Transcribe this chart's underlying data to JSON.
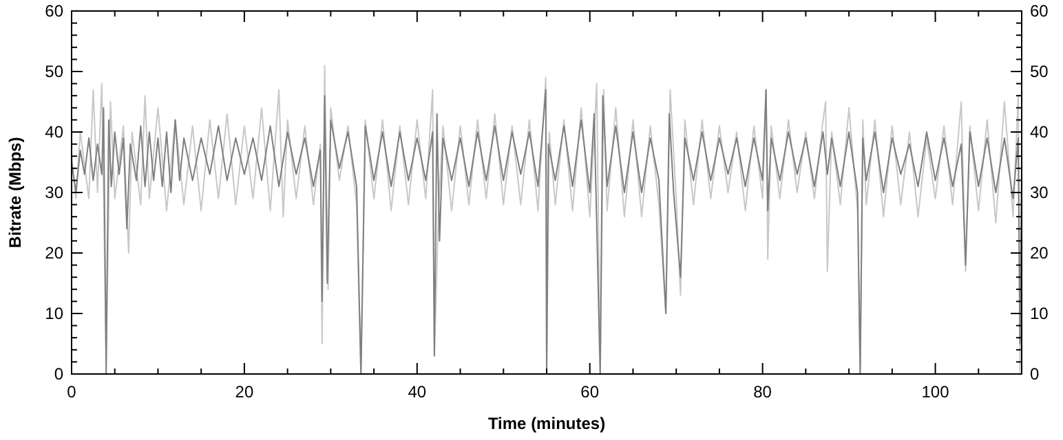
{
  "chart_data": {
    "type": "line",
    "xlabel": "Time (minutes)",
    "ylabel": "Bitrate (Mbps)",
    "xlim": [
      0,
      110
    ],
    "ylim": [
      0,
      60
    ],
    "y2lim": [
      0,
      60
    ],
    "xticks": [
      0,
      {
        "value": 5,
        "label": null
      },
      {
        "value": 10,
        "label": null
      },
      {
        "value": 15,
        "label": null
      },
      20,
      {
        "value": 25,
        "label": null
      },
      {
        "value": 30,
        "label": null
      },
      {
        "value": 35,
        "label": null
      },
      40,
      {
        "value": 45,
        "label": null
      },
      {
        "value": 50,
        "label": null
      },
      {
        "value": 55,
        "label": null
      },
      60,
      {
        "value": 65,
        "label": null
      },
      {
        "value": 70,
        "label": null
      },
      {
        "value": 75,
        "label": null
      },
      80,
      {
        "value": 85,
        "label": null
      },
      {
        "value": 90,
        "label": null
      },
      {
        "value": 95,
        "label": null
      },
      100,
      {
        "value": 105,
        "label": null
      }
    ],
    "yticks": [
      0,
      {
        "value": 2,
        "label": null
      },
      {
        "value": 4,
        "label": null
      },
      {
        "value": 6,
        "label": null
      },
      {
        "value": 8,
        "label": null
      },
      10,
      {
        "value": 12,
        "label": null
      },
      {
        "value": 14,
        "label": null
      },
      {
        "value": 16,
        "label": null
      },
      {
        "value": 18,
        "label": null
      },
      20,
      {
        "value": 22,
        "label": null
      },
      {
        "value": 24,
        "label": null
      },
      {
        "value": 26,
        "label": null
      },
      {
        "value": 28,
        "label": null
      },
      30,
      {
        "value": 32,
        "label": null
      },
      {
        "value": 34,
        "label": null
      },
      {
        "value": 36,
        "label": null
      },
      {
        "value": 38,
        "label": null
      },
      40,
      {
        "value": 42,
        "label": null
      },
      {
        "value": 44,
        "label": null
      },
      {
        "value": 46,
        "label": null
      },
      {
        "value": 48,
        "label": null
      },
      50,
      {
        "value": 52,
        "label": null
      },
      {
        "value": 54,
        "label": null
      },
      {
        "value": 56,
        "label": null
      },
      {
        "value": 58,
        "label": null
      },
      60
    ],
    "y2ticks": [
      0,
      {
        "value": 2,
        "label": null
      },
      {
        "value": 4,
        "label": null
      },
      {
        "value": 6,
        "label": null
      },
      {
        "value": 8,
        "label": null
      },
      10,
      {
        "value": 12,
        "label": null
      },
      {
        "value": 14,
        "label": null
      },
      {
        "value": 16,
        "label": null
      },
      {
        "value": 18,
        "label": null
      },
      20,
      {
        "value": 22,
        "label": null
      },
      {
        "value": 24,
        "label": null
      },
      {
        "value": 26,
        "label": null
      },
      {
        "value": 28,
        "label": null
      },
      30,
      {
        "value": 32,
        "label": null
      },
      {
        "value": 34,
        "label": null
      },
      {
        "value": 36,
        "label": null
      },
      {
        "value": 38,
        "label": null
      },
      40,
      {
        "value": 42,
        "label": null
      },
      {
        "value": 44,
        "label": null
      },
      {
        "value": 46,
        "label": null
      },
      {
        "value": 48,
        "label": null
      },
      50,
      {
        "value": 52,
        "label": null
      },
      {
        "value": 54,
        "label": null
      },
      {
        "value": 56,
        "label": null
      },
      {
        "value": 58,
        "label": null
      },
      60
    ],
    "series": [
      {
        "color": "#c8c8c8",
        "x": [
          0,
          0.5,
          1,
          2,
          2.5,
          3,
          3.5,
          4.0,
          4.5,
          5,
          6,
          6.6,
          7,
          8,
          8.5,
          9,
          10,
          11,
          12,
          13,
          14,
          15,
          16,
          17,
          18,
          19,
          20,
          21,
          22,
          23,
          24,
          24.5,
          25,
          26,
          27,
          28,
          28.8,
          29.0,
          29.3,
          29.7,
          30,
          31,
          32,
          33,
          33.5,
          34,
          35,
          36,
          37,
          38,
          39,
          40,
          41,
          41.8,
          42.0,
          42.5,
          43,
          44,
          45,
          46,
          47,
          48,
          49,
          50,
          51,
          52,
          53,
          54,
          54.9,
          55.0,
          55.3,
          56,
          57,
          58,
          59,
          60,
          60.8,
          61.2,
          61.6,
          62,
          63,
          64,
          65,
          66,
          67,
          68,
          68.8,
          69.3,
          70,
          70.5,
          71,
          72,
          73,
          74,
          75,
          76,
          77,
          78,
          79,
          80,
          80.4,
          80.6,
          81,
          82,
          83,
          84,
          85,
          86,
          87,
          87.3,
          87.5,
          88,
          89,
          90,
          91,
          91.3,
          91.6,
          92,
          93,
          94,
          95,
          96,
          97,
          98,
          99,
          100,
          101,
          102,
          103,
          103.5,
          104,
          105,
          106,
          107,
          108,
          109,
          109.6,
          109.8,
          110
        ],
        "values": [
          36,
          29,
          40,
          29,
          47,
          30,
          48,
          3,
          45,
          29,
          41,
          20,
          40,
          28,
          46,
          29,
          44,
          27,
          42,
          28,
          41,
          27,
          42,
          29,
          43,
          28,
          41,
          29,
          44,
          27,
          47,
          26,
          42,
          29,
          41,
          28,
          38,
          5,
          51,
          14,
          44,
          32,
          41,
          28,
          0,
          42,
          29,
          42,
          27,
          41,
          28,
          42,
          29,
          47,
          3,
          28,
          41,
          27,
          41,
          28,
          42,
          29,
          43,
          28,
          41,
          28,
          42,
          27,
          49,
          0,
          40,
          28,
          42,
          27,
          44,
          26,
          48,
          0,
          47,
          27,
          44,
          26,
          42,
          26,
          41,
          28,
          10,
          47,
          29,
          13,
          42,
          28,
          42,
          29,
          41,
          30,
          40,
          27,
          41,
          29,
          47,
          19,
          41,
          29,
          42,
          30,
          40,
          29,
          42,
          45,
          17,
          40,
          28,
          44,
          27,
          0,
          42,
          28,
          42,
          26,
          41,
          28,
          40,
          26,
          39,
          29,
          41,
          28,
          45,
          17,
          41,
          27,
          42,
          25,
          45,
          26,
          46,
          0,
          35
        ]
      },
      {
        "color": "#7f7f7f",
        "x": [
          0,
          0.5,
          1,
          1.5,
          2,
          2.5,
          3,
          3.5,
          3.7,
          4.0,
          4.3,
          4.6,
          5,
          5.5,
          6,
          6.4,
          6.8,
          7.5,
          8,
          8.5,
          9,
          9.5,
          10,
          10.5,
          11,
          11.5,
          12,
          12.5,
          13,
          14,
          15,
          16,
          17,
          18,
          19,
          20,
          21,
          22,
          23,
          24,
          25,
          26,
          27,
          28,
          28.8,
          29.0,
          29.3,
          29.6,
          30,
          31,
          32,
          33,
          33.5,
          34,
          35,
          36,
          37,
          38,
          39,
          40,
          41,
          41.8,
          42.0,
          42.3,
          42.6,
          43,
          44,
          45,
          46,
          47,
          48,
          49,
          50,
          51,
          52,
          53,
          54,
          54.9,
          55.0,
          55.2,
          56,
          57,
          58,
          59,
          60,
          60.5,
          61.2,
          61.5,
          62,
          63,
          64,
          65,
          66,
          67,
          68,
          68.8,
          69.2,
          69.7,
          70.5,
          71,
          72,
          73,
          74,
          75,
          76,
          77,
          78,
          79,
          80,
          80.4,
          80.6,
          81,
          82,
          83,
          84,
          85,
          86,
          87,
          87.5,
          88,
          89,
          90,
          91,
          91.3,
          91.6,
          92,
          93,
          94,
          95,
          96,
          97,
          98,
          99,
          100,
          101,
          102,
          103,
          103.5,
          104,
          105,
          106,
          107,
          108,
          109,
          109.6,
          109.8,
          110
        ],
        "values": [
          35,
          30,
          37,
          33,
          39,
          32,
          38,
          33,
          44,
          0,
          42,
          31,
          40,
          33,
          39,
          24,
          38,
          32,
          41,
          31,
          40,
          32,
          39,
          31,
          40,
          30,
          42,
          32,
          39,
          32,
          39,
          33,
          41,
          32,
          39,
          33,
          39,
          32,
          41,
          31,
          40,
          33,
          39,
          31,
          37,
          12,
          46,
          15,
          42,
          34,
          40,
          31,
          0,
          41,
          32,
          40,
          31,
          40,
          32,
          39,
          32,
          40,
          3,
          43,
          22,
          39,
          32,
          39,
          31,
          40,
          32,
          41,
          32,
          40,
          33,
          40,
          31,
          47,
          0,
          38,
          32,
          41,
          31,
          42,
          30,
          43,
          0,
          46,
          31,
          41,
          30,
          40,
          30,
          39,
          32,
          10,
          43,
          30,
          16,
          39,
          32,
          40,
          32,
          39,
          33,
          39,
          31,
          39,
          32,
          47,
          27,
          39,
          32,
          40,
          33,
          39,
          31,
          40,
          33,
          39,
          31,
          40,
          30,
          0,
          39,
          32,
          40,
          30,
          39,
          33,
          38,
          31,
          40,
          32,
          39,
          31,
          38,
          18,
          40,
          31,
          39,
          30,
          39,
          29,
          39,
          5,
          33
        ]
      }
    ]
  }
}
